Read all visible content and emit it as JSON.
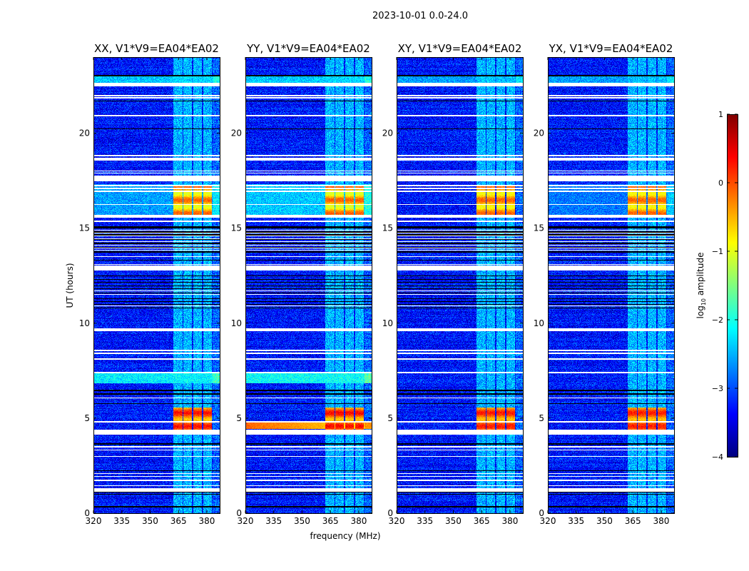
{
  "chart_data": {
    "type": "heatmap",
    "suptitle": "2023-10-01 0.0-24.0",
    "xlabel": "frequency (MHz)",
    "ylabel": "UT (hours)",
    "xlim": [
      320,
      386.8
    ],
    "ylim": [
      0,
      24
    ],
    "xticks": [
      320,
      335,
      350,
      365,
      380
    ],
    "yticks": [
      0,
      5,
      10,
      15,
      20
    ],
    "colorbar": {
      "label_prefix": "log",
      "label_sub": "10",
      "label_suffix": " amplitude",
      "range": [
        -4,
        1
      ],
      "ticks": [
        1,
        0,
        -1,
        -2,
        -3,
        -4
      ],
      "tick_labels": [
        "1",
        "0",
        "−1",
        "−2",
        "−3",
        "−4"
      ],
      "colormap": "jet"
    },
    "background_level": -3.3,
    "channel_columns_mhz": [
      [
        362.3,
        367.2
      ],
      [
        367.5,
        372.0
      ],
      [
        372.8,
        377.4
      ],
      [
        378.0,
        382.6
      ]
    ],
    "column_level": -2.5,
    "events": [
      {
        "ut": [
          4.4,
          5.55
        ],
        "level": 0.05
      },
      {
        "ut": [
          15.6,
          17.25
        ],
        "level": -0.35
      }
    ],
    "white_flags_ut": [
      [
        22.5,
        22.62
      ],
      [
        21.97,
        21.97
      ],
      [
        21.86,
        21.86
      ],
      [
        20.92,
        20.92
      ],
      [
        18.82,
        18.82
      ],
      [
        18.67,
        18.67
      ],
      [
        18.59,
        18.59
      ],
      [
        18.0,
        18.0
      ],
      [
        17.9,
        17.9
      ],
      [
        17.5,
        17.73
      ],
      [
        17.24,
        17.24
      ],
      [
        17.09,
        17.09
      ],
      [
        16.94,
        16.94
      ],
      [
        16.23,
        16.23
      ],
      [
        15.66,
        15.66
      ],
      [
        15.59,
        15.59
      ],
      [
        15.36,
        15.36
      ],
      [
        14.9,
        14.9
      ],
      [
        14.75,
        14.75
      ],
      [
        14.6,
        14.6
      ],
      [
        14.45,
        14.45
      ],
      [
        14.3,
        14.3
      ],
      [
        14.1,
        14.1
      ],
      [
        13.95,
        13.95
      ],
      [
        13.85,
        13.85
      ],
      [
        13.5,
        13.5
      ],
      [
        13.1,
        13.1
      ],
      [
        12.8,
        13.0
      ],
      [
        11.7,
        11.7
      ],
      [
        11.5,
        11.5
      ],
      [
        10.9,
        10.9
      ],
      [
        9.6,
        9.7
      ],
      [
        8.56,
        8.56
      ],
      [
        8.41,
        8.41
      ],
      [
        8.11,
        8.11
      ],
      [
        7.4,
        7.4
      ],
      [
        6.08,
        6.08
      ],
      [
        4.81,
        4.81
      ],
      [
        4.17,
        4.39
      ],
      [
        3.49,
        3.49
      ],
      [
        3.31,
        3.31
      ],
      [
        3.0,
        3.0
      ],
      [
        2.07,
        2.07
      ],
      [
        1.92,
        1.92
      ],
      [
        1.73,
        1.73
      ],
      [
        1.46,
        1.46
      ],
      [
        1.16,
        1.31
      ]
    ],
    "black_flags_ut": [
      23.02,
      21.7,
      20.24,
      15.06,
      15.0,
      14.8,
      14.65,
      14.4,
      14.2,
      14.0,
      13.75,
      13.3,
      12.5,
      12.3,
      12.15,
      11.95,
      11.8,
      11.6,
      11.3,
      11.15,
      11.0,
      10.8,
      6.46,
      6.27,
      5.78,
      3.64,
      2.22,
      1.13,
      1.0,
      0.34
    ],
    "panels": [
      {
        "title": "XX, V1*V9=EA04*EA02",
        "event_gain": 1.0,
        "bright_bands": [
          {
            "ut": [
              22.65,
              23.0
            ],
            "level": -2.4
          },
          {
            "ut": [
              6.85,
              7.4
            ],
            "level": -2.2
          },
          {
            "ut": [
              15.6,
              17.3
            ],
            "level": -2.6
          }
        ],
        "broadband_event": null
      },
      {
        "title": "YY, V1*V9=EA04*EA02",
        "event_gain": 1.1,
        "bright_bands": [
          {
            "ut": [
              22.65,
              23.0
            ],
            "level": -2.4
          },
          {
            "ut": [
              6.85,
              7.4
            ],
            "level": -2.1
          },
          {
            "ut": [
              15.6,
              17.3
            ],
            "level": -2.4
          }
        ],
        "broadband_event": {
          "ut": [
            4.45,
            4.78
          ],
          "level": -0.1
        }
      },
      {
        "title": "XY, V1*V9=EA04*EA02",
        "event_gain": 0.9,
        "bright_bands": [
          {
            "ut": [
              22.65,
              23.0
            ],
            "level": -2.6
          }
        ],
        "broadband_event": null
      },
      {
        "title": "YX, V1*V9=EA04*EA02",
        "event_gain": 0.9,
        "bright_bands": [
          {
            "ut": [
              22.65,
              23.0
            ],
            "level": -2.6
          },
          {
            "ut": [
              15.6,
              17.3
            ],
            "level": -2.8
          }
        ],
        "broadband_event": null
      }
    ]
  }
}
